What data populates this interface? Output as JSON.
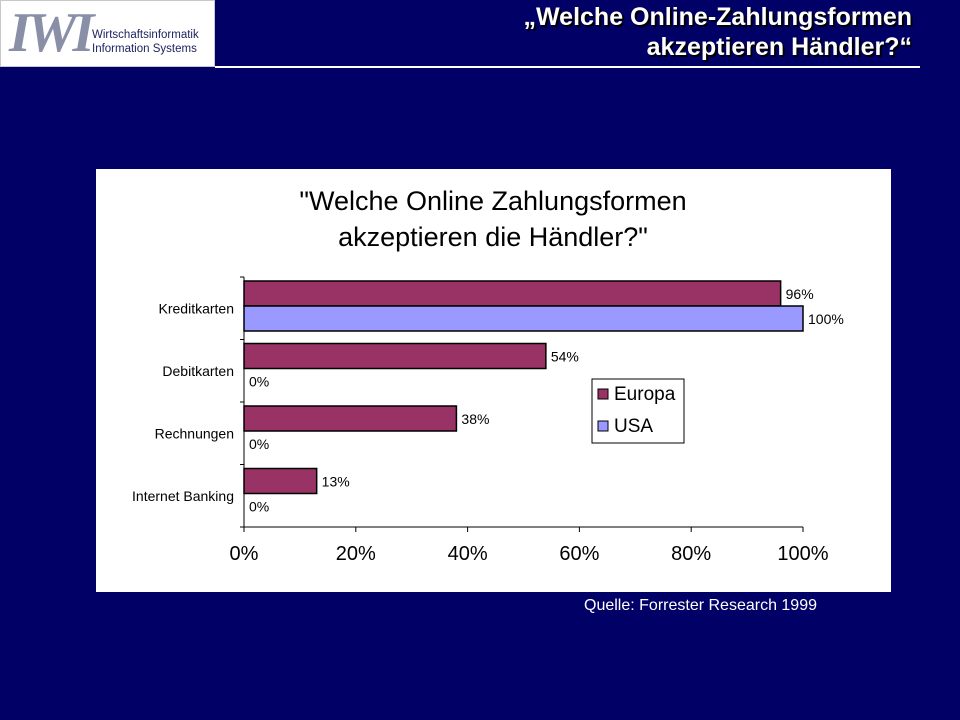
{
  "logo": {
    "mark": "IWI",
    "line1": "Wirtschaftsinformatik",
    "line2": "Information Systems"
  },
  "slide": {
    "title_line1": "„Welche Online-Zahlungsformen",
    "title_line2": "akzeptieren Händler?“",
    "source": "Quelle: Forrester Research 1999"
  },
  "colors": {
    "background": "#000066",
    "europa": "#993366",
    "usa": "#9999FF"
  },
  "chart_data": {
    "type": "bar",
    "orientation": "horizontal",
    "title_lines": [
      "\"Welche Online Zahlungsformen",
      "akzeptieren die Händler?\""
    ],
    "categories": [
      "Kreditkarten",
      "Debitkarten",
      "Rechnungen",
      "Internet Banking"
    ],
    "series": [
      {
        "name": "Europa",
        "values": [
          96,
          54,
          38,
          13
        ],
        "color": "#993366"
      },
      {
        "name": "USA",
        "values": [
          100,
          0,
          0,
          0
        ],
        "color": "#9999FF"
      }
    ],
    "data_labels": [
      [
        "96%",
        "54%",
        "38%",
        "13%"
      ],
      [
        "100%",
        "0%",
        "0%",
        "0%"
      ]
    ],
    "xlim": [
      0,
      100
    ],
    "xticks": [
      0,
      20,
      40,
      60,
      80,
      100
    ],
    "xtick_labels": [
      "0%",
      "20%",
      "40%",
      "60%",
      "80%",
      "100%"
    ],
    "grid": false,
    "legend_position": "right-middle"
  }
}
